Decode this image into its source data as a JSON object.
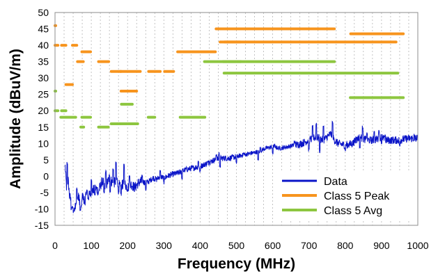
{
  "chart_data": {
    "type": "line",
    "xlabel": "Frequency (MHz)",
    "ylabel": "Amplitude (dBuV/m)",
    "xlim": [
      0,
      1000
    ],
    "ylim": [
      -15,
      50
    ],
    "x_ticks": [
      "0",
      "100",
      "200",
      "300",
      "400",
      "500",
      "600",
      "700",
      "800",
      "900",
      "1000"
    ],
    "y_ticks": [
      "-15",
      "-10",
      "-5",
      "0",
      "5",
      "10",
      "15",
      "20",
      "25",
      "30",
      "35",
      "40",
      "45",
      "50"
    ],
    "grid": "dashed vertical gridlines",
    "legend_position": "bottom-right",
    "series": [
      {
        "name": "Data",
        "color": "#0a14c8",
        "style": "noisy line",
        "points": [
          [
            28,
            3
          ],
          [
            32,
            -4
          ],
          [
            36,
            -1
          ],
          [
            40,
            -6
          ],
          [
            45,
            -8
          ],
          [
            50,
            -10
          ],
          [
            55,
            -9
          ],
          [
            60,
            -7
          ],
          [
            65,
            -6.5
          ],
          [
            70,
            -8
          ],
          [
            75,
            -6
          ],
          [
            80,
            -7
          ],
          [
            85,
            -5.5
          ],
          [
            90,
            -6.5
          ],
          [
            100,
            -5
          ],
          [
            110,
            -3.5
          ],
          [
            120,
            -4.5
          ],
          [
            130,
            -1.5
          ],
          [
            140,
            -3
          ],
          [
            150,
            -0.5
          ],
          [
            160,
            -2.5
          ],
          [
            170,
            -1
          ],
          [
            180,
            -3.5
          ],
          [
            190,
            -2
          ],
          [
            200,
            -3.5
          ],
          [
            210,
            -2.5
          ],
          [
            220,
            -3.5
          ],
          [
            230,
            -2
          ],
          [
            240,
            -1.5
          ],
          [
            250,
            -2
          ],
          [
            260,
            -1.5
          ],
          [
            270,
            -0.5
          ],
          [
            280,
            -1
          ],
          [
            290,
            0
          ],
          [
            300,
            -0.5
          ],
          [
            320,
            0.5
          ],
          [
            340,
            1
          ],
          [
            360,
            2
          ],
          [
            380,
            2.5
          ],
          [
            400,
            3
          ],
          [
            420,
            4
          ],
          [
            440,
            5
          ],
          [
            460,
            5.5
          ],
          [
            480,
            5.5
          ],
          [
            500,
            6
          ],
          [
            520,
            6.5
          ],
          [
            540,
            7
          ],
          [
            560,
            7.5
          ],
          [
            570,
            8
          ],
          [
            580,
            8.5
          ],
          [
            600,
            9
          ],
          [
            620,
            8.5
          ],
          [
            640,
            9
          ],
          [
            660,
            9.5
          ],
          [
            680,
            10
          ],
          [
            700,
            11
          ],
          [
            720,
            12
          ],
          [
            740,
            11
          ],
          [
            760,
            13
          ],
          [
            770,
            11
          ],
          [
            780,
            10
          ],
          [
            800,
            9.5
          ],
          [
            820,
            10
          ],
          [
            840,
            12
          ],
          [
            860,
            11
          ],
          [
            880,
            11
          ],
          [
            900,
            12
          ],
          [
            910,
            11
          ],
          [
            930,
            11
          ],
          [
            950,
            11
          ],
          [
            970,
            11.5
          ],
          [
            990,
            11.5
          ],
          [
            1000,
            11.5
          ]
        ],
        "peaks": [
          [
            34,
            4
          ],
          [
            48,
            -9.5
          ],
          [
            52,
            -10.5
          ],
          [
            60,
            -4
          ],
          [
            72,
            -9.5
          ],
          [
            88,
            -4.5
          ],
          [
            100,
            -1
          ],
          [
            118,
            -5.5
          ],
          [
            140,
            1.5
          ],
          [
            160,
            2
          ],
          [
            168,
            4
          ],
          [
            175,
            -5
          ],
          [
            190,
            3.5
          ],
          [
            205,
            0
          ],
          [
            240,
            0
          ],
          [
            290,
            1.5
          ],
          [
            350,
            2.5
          ],
          [
            395,
            4.5
          ],
          [
            425,
            5
          ],
          [
            445,
            6.5
          ],
          [
            452,
            7
          ],
          [
            520,
            7
          ],
          [
            560,
            9.5
          ],
          [
            566,
            9
          ],
          [
            605,
            9.5
          ],
          [
            660,
            10.5
          ],
          [
            710,
            15
          ],
          [
            720,
            16
          ],
          [
            740,
            15
          ],
          [
            765,
            16.5
          ],
          [
            800,
            11
          ],
          [
            830,
            12
          ],
          [
            848,
            15
          ],
          [
            860,
            13
          ],
          [
            880,
            13.5
          ],
          [
            893,
            14
          ],
          [
            910,
            12.5
          ],
          [
            950,
            12
          ],
          [
            990,
            12.5
          ]
        ],
        "troughs": [
          [
            45,
            -10
          ],
          [
            70,
            -10.5
          ],
          [
            82,
            -8.5
          ],
          [
            110,
            -5.5
          ],
          [
            135,
            -5
          ],
          [
            152,
            -4.5
          ],
          [
            182,
            -5.5
          ],
          [
            250,
            -4
          ],
          [
            300,
            -2
          ],
          [
            350,
            -0.5
          ],
          [
            400,
            1.5
          ],
          [
            455,
            3
          ],
          [
            500,
            4
          ],
          [
            560,
            5
          ],
          [
            600,
            7
          ],
          [
            700,
            8
          ],
          [
            730,
            7.5
          ],
          [
            800,
            8
          ],
          [
            840,
            9
          ],
          [
            900,
            10
          ],
          [
            950,
            9.5
          ]
        ]
      },
      {
        "name": "Class 5 Peak",
        "color": "#f7941d",
        "style": "horizontal limit segments",
        "segments": [
          [
            0,
            2,
            46
          ],
          [
            0,
            8,
            40
          ],
          [
            18,
            30,
            40
          ],
          [
            30,
            48,
            28
          ],
          [
            48,
            60,
            40
          ],
          [
            62,
            78,
            35
          ],
          [
            74,
            98,
            38
          ],
          [
            120,
            148,
            35
          ],
          [
            155,
            182,
            32
          ],
          [
            182,
            225,
            26
          ],
          [
            180,
            235,
            32
          ],
          [
            258,
            290,
            32
          ],
          [
            302,
            327,
            32
          ],
          [
            338,
            370,
            38
          ],
          [
            365,
            412,
            38
          ],
          [
            402,
            442,
            38
          ],
          [
            444,
            468,
            45
          ],
          [
            455,
            510,
            41
          ],
          [
            467,
            770,
            45
          ],
          [
            467,
            940,
            41
          ],
          [
            815,
            960,
            43.5
          ]
        ]
      },
      {
        "name": "Class 5 Avg",
        "color": "#8dc63f",
        "style": "horizontal limit segments",
        "segments": [
          [
            0,
            2,
            26
          ],
          [
            0,
            8,
            20
          ],
          [
            18,
            30,
            20
          ],
          [
            16,
            57,
            18
          ],
          [
            74,
            98,
            18
          ],
          [
            71,
            79,
            15
          ],
          [
            120,
            147,
            15
          ],
          [
            155,
            182,
            16
          ],
          [
            184,
            228,
            16
          ],
          [
            183,
            213,
            22
          ],
          [
            257,
            275,
            18
          ],
          [
            345,
            413,
            18
          ],
          [
            412,
            512,
            35
          ],
          [
            463,
            770,
            35
          ],
          [
            466,
            945,
            31.5
          ],
          [
            814,
            960,
            24
          ]
        ]
      }
    ]
  }
}
